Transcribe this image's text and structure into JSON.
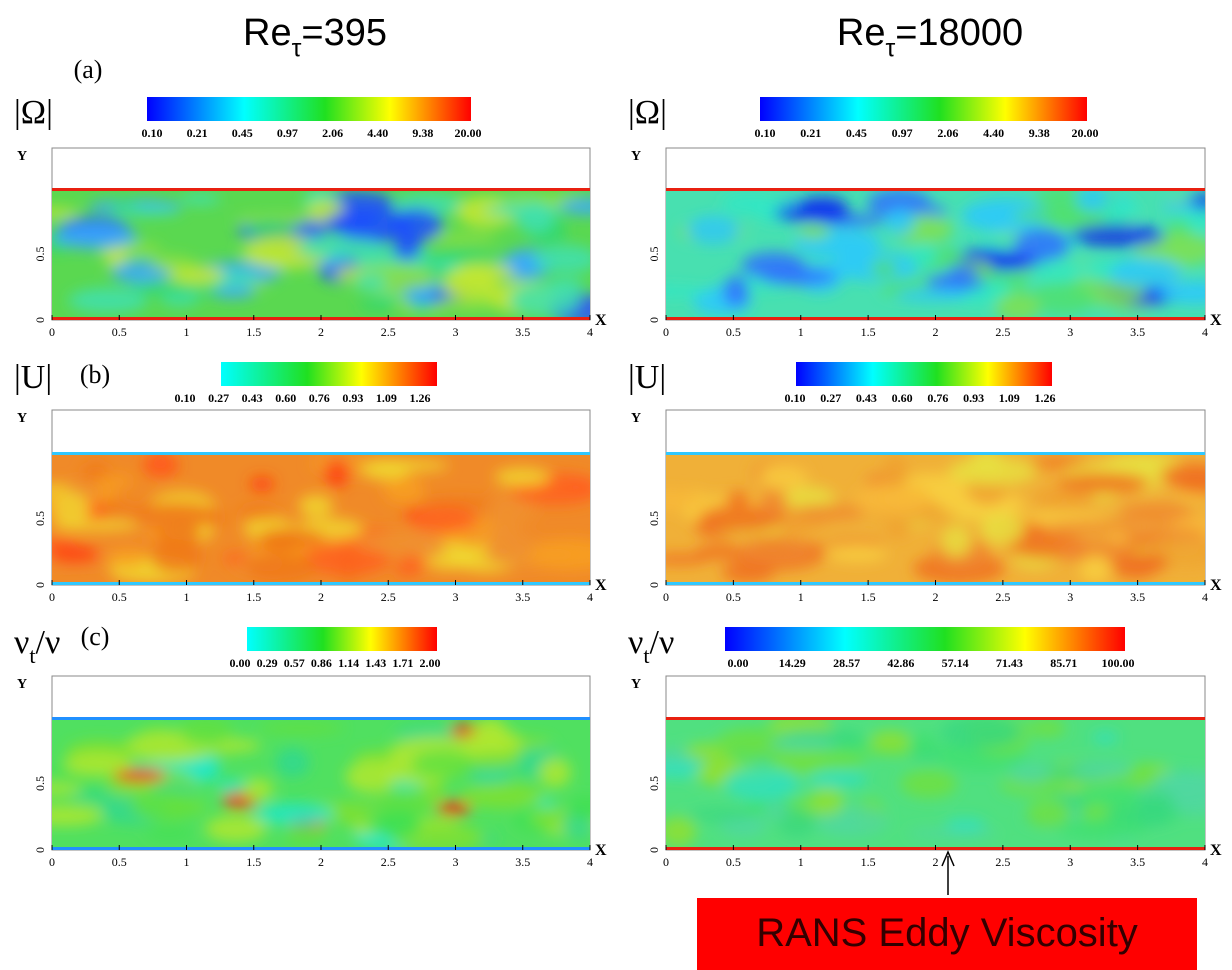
{
  "headers": [
    {
      "base": "Re",
      "sub": "τ",
      "rest": "=395"
    },
    {
      "base": "Re",
      "sub": "τ",
      "rest": "=18000"
    }
  ],
  "rows": [
    {
      "label": "(a)",
      "quantity": {
        "base": "|Ω|"
      },
      "colorbars": [
        [
          "0.10",
          "0.21",
          "0.45",
          "0.97",
          "2.06",
          "4.40",
          "9.38",
          "20.00"
        ],
        [
          "0.10",
          "0.21",
          "0.45",
          "0.97",
          "2.06",
          "4.40",
          "9.38",
          "20.00"
        ]
      ]
    },
    {
      "label": "(b)",
      "quantity": {
        "base": "|U|"
      },
      "colorbars": [
        [
          "0.10",
          "0.27",
          "0.43",
          "0.60",
          "0.76",
          "0.93",
          "1.09",
          "1.26"
        ],
        [
          "0.10",
          "0.27",
          "0.43",
          "0.60",
          "0.76",
          "0.93",
          "1.09",
          "1.26"
        ]
      ]
    },
    {
      "label": "(c)",
      "quantity": {
        "base": "ν",
        "sub": "t",
        "rest": "/ν"
      },
      "colorbars": [
        [
          "0.00",
          "0.29",
          "0.57",
          "0.86",
          "1.14",
          "1.43",
          "1.71",
          "2.00"
        ],
        [
          "0.00",
          "14.29",
          "28.57",
          "42.86",
          "57.14",
          "71.43",
          "85.71",
          "100.00"
        ]
      ]
    }
  ],
  "axis": {
    "y_label": "Y",
    "x_label": "X",
    "x_ticks": [
      "0",
      "0.5",
      "1",
      "1.5",
      "2",
      "2.5",
      "3",
      "3.5",
      "4"
    ],
    "y_ticks": [
      "0",
      "0.5"
    ]
  },
  "annotation": "RANS Eddy Viscosity"
}
